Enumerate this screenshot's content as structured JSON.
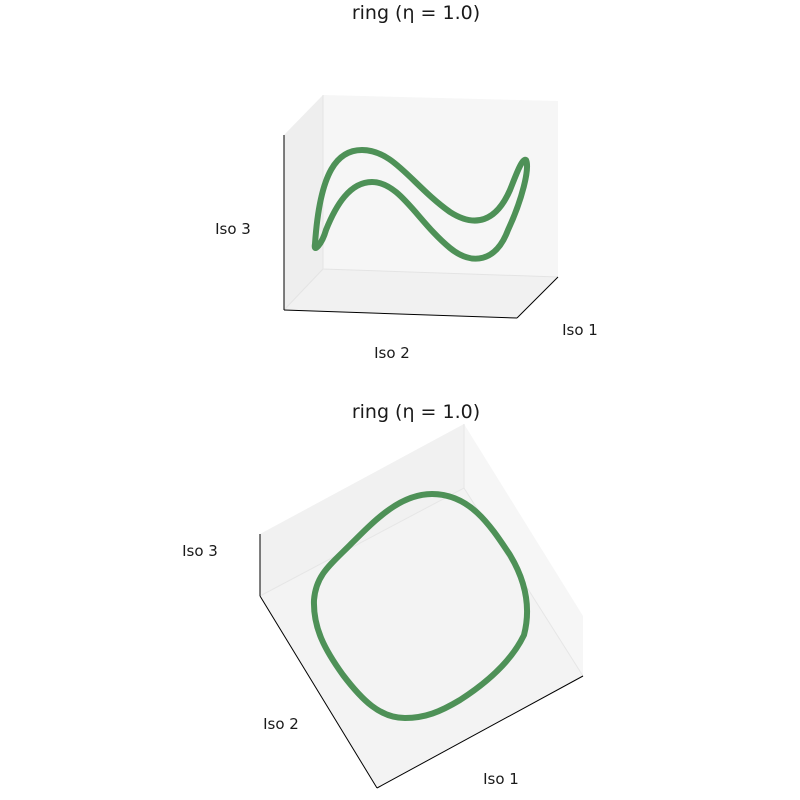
{
  "chart_data": [
    {
      "type": "line3d",
      "title": "ring (η = 1.0)",
      "xlabel": "Iso 1",
      "ylabel": "Iso 2",
      "zlabel": "Iso 3",
      "series_color": "#4e9157",
      "shape": "saddle-shaped closed curve seen from the side (two sinusoidal strands joined at the ends)"
    },
    {
      "type": "line3d",
      "title": "ring (η = 1.0)",
      "xlabel": "Iso 1",
      "ylabel": "Iso 2",
      "zlabel": "Iso 3",
      "series_color": "#4e9157",
      "shape": "rounded-square closed loop seen from above"
    }
  ],
  "colors": {
    "pane_back": "#f6f6f6",
    "pane_floor": "#f0f0f0",
    "pane_side": "#f3f3f3",
    "axis_line": "#000000"
  }
}
